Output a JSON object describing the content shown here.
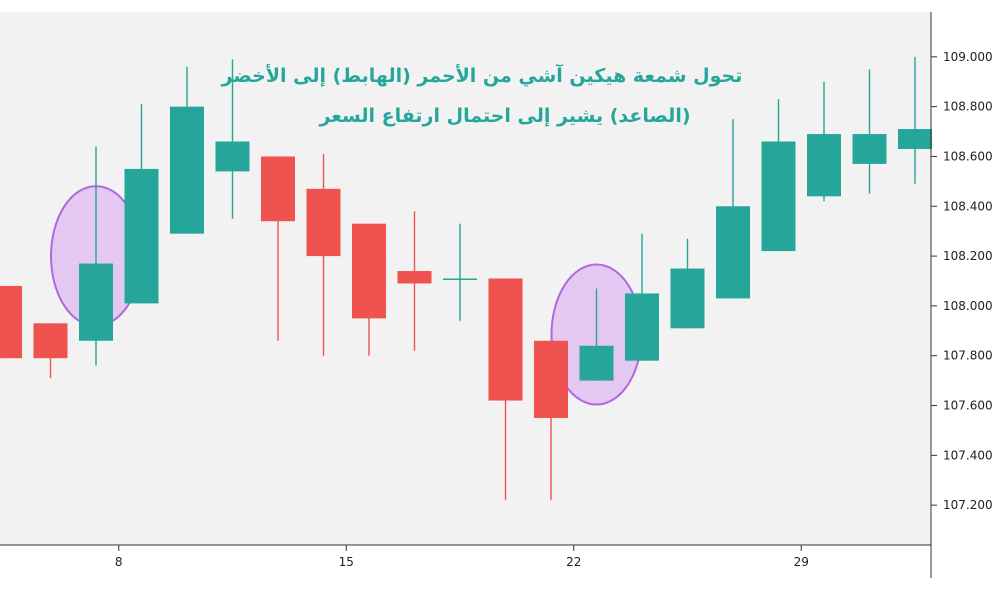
{
  "chart_data": {
    "type": "candlestick",
    "title": "تحول شمعة هيكين آشي من الأحمر (الهابط) إلى الأخضر",
    "subtitle": "(الصاعد) يشير إلى احتمال ارتفاع السعر",
    "xlabel": "",
    "ylabel": "",
    "ylim": [
      107.04,
      109.18
    ],
    "grid": false,
    "colors": {
      "up": "#26a69a",
      "down": "#ef5350",
      "highlight_fill": "#e4c8f2",
      "highlight_stroke": "#b266e0",
      "annotation": "#26a69a"
    },
    "y_ticks": [
      "109.000",
      "108.800",
      "108.600",
      "108.400",
      "108.200",
      "108.000",
      "107.800",
      "107.600",
      "107.400",
      "107.200"
    ],
    "y_tick_values": [
      109.0,
      108.8,
      108.6,
      108.4,
      108.2,
      108.0,
      107.8,
      107.6,
      107.4,
      107.2
    ],
    "x_ticks": [
      "8",
      "15",
      "22",
      "29"
    ],
    "x_tick_index": [
      2.5,
      7.5,
      12.5,
      17.5
    ],
    "candles": [
      {
        "open": 108.08,
        "high": 108.08,
        "low": 107.79,
        "close": 107.79
      },
      {
        "open": 107.93,
        "high": 107.93,
        "low": 107.71,
        "close": 107.79
      },
      {
        "open": 107.86,
        "high": 108.64,
        "low": 107.76,
        "close": 108.17
      },
      {
        "open": 108.01,
        "high": 108.81,
        "low": 108.01,
        "close": 108.55
      },
      {
        "open": 108.29,
        "high": 108.96,
        "low": 108.29,
        "close": 108.8
      },
      {
        "open": 108.54,
        "high": 108.99,
        "low": 108.35,
        "close": 108.66
      },
      {
        "open": 108.6,
        "high": 108.6,
        "low": 107.86,
        "close": 108.34
      },
      {
        "open": 108.47,
        "high": 108.61,
        "low": 107.8,
        "close": 108.2
      },
      {
        "open": 108.33,
        "high": 108.33,
        "low": 107.8,
        "close": 107.95
      },
      {
        "open": 108.14,
        "high": 108.38,
        "low": 107.82,
        "close": 108.09
      },
      {
        "open": 108.11,
        "high": 108.33,
        "low": 107.94,
        "close": 108.11
      },
      {
        "open": 108.11,
        "high": 108.11,
        "low": 107.22,
        "close": 107.62
      },
      {
        "open": 107.86,
        "high": 107.86,
        "low": 107.22,
        "close": 107.55
      },
      {
        "open": 107.7,
        "high": 108.07,
        "low": 107.7,
        "close": 107.84
      },
      {
        "open": 107.78,
        "high": 108.29,
        "low": 107.78,
        "close": 108.05
      },
      {
        "open": 107.91,
        "high": 108.27,
        "low": 107.91,
        "close": 108.15
      },
      {
        "open": 108.03,
        "high": 108.75,
        "low": 108.03,
        "close": 108.4
      },
      {
        "open": 108.22,
        "high": 108.83,
        "low": 108.22,
        "close": 108.66
      },
      {
        "open": 108.44,
        "high": 108.9,
        "low": 108.42,
        "close": 108.69
      },
      {
        "open": 108.57,
        "high": 108.95,
        "low": 108.45,
        "close": 108.69
      },
      {
        "open": 108.63,
        "high": 109.0,
        "low": 108.49,
        "close": 108.71
      }
    ],
    "highlighted_candles": [
      2,
      13
    ]
  }
}
